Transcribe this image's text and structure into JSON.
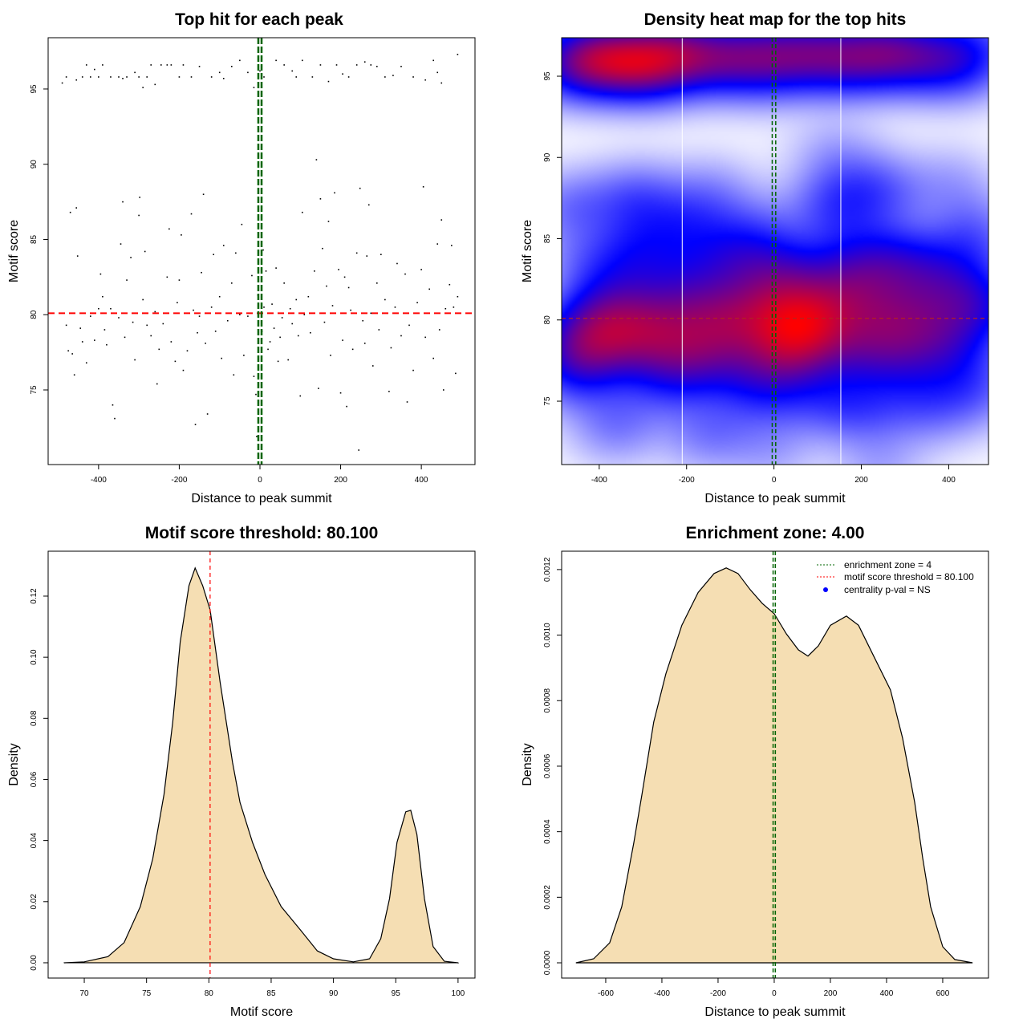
{
  "chart_data": [
    {
      "type": "scatter",
      "title": "Top hit for each peak",
      "xlabel": "Distance to peak summit",
      "ylabel": "Motif score",
      "xlim": [
        -525,
        533
      ],
      "ylim": [
        70.04,
        98.41
      ],
      "xticks": [
        "-400",
        "-200",
        "0",
        "200",
        "400"
      ],
      "xtick_values": [
        -400,
        -200,
        0,
        200,
        400
      ],
      "yticks": [
        "75",
        "80",
        "85",
        "90",
        "95"
      ],
      "ytick_values": [
        75,
        80,
        85,
        90,
        95
      ],
      "hline": {
        "y": 80.1,
        "color": "#ff0000",
        "style": "dashed"
      },
      "vlines": {
        "x": [
          -4,
          4
        ],
        "color": "#006400",
        "style": "dashed"
      },
      "points": [
        [
          -490,
          95.4
        ],
        [
          -480,
          95.8
        ],
        [
          -455,
          95.6
        ],
        [
          -440,
          95.8
        ],
        [
          -430,
          96.6
        ],
        [
          -420,
          95.8
        ],
        [
          -410,
          96.3
        ],
        [
          -400,
          95.8
        ],
        [
          -390,
          96.6
        ],
        [
          -370,
          95.8
        ],
        [
          -350,
          95.8
        ],
        [
          -340,
          95.7
        ],
        [
          -330,
          95.8
        ],
        [
          -310,
          96.1
        ],
        [
          -300,
          95.8
        ],
        [
          -290,
          95.1
        ],
        [
          -280,
          95.8
        ],
        [
          -270,
          96.6
        ],
        [
          -260,
          95.3
        ],
        [
          -245,
          96.6
        ],
        [
          -230,
          96.6
        ],
        [
          -220,
          96.6
        ],
        [
          -200,
          95.8
        ],
        [
          -190,
          96.6
        ],
        [
          -170,
          95.8
        ],
        [
          -150,
          96.5
        ],
        [
          -120,
          95.8
        ],
        [
          -100,
          96.1
        ],
        [
          -90,
          95.7
        ],
        [
          -70,
          96.5
        ],
        [
          -50,
          96.9
        ],
        [
          -30,
          96.1
        ],
        [
          -15,
          95.1
        ],
        [
          0,
          96.2
        ],
        [
          10,
          95.8
        ],
        [
          40,
          96.9
        ],
        [
          60,
          96.6
        ],
        [
          80,
          96.2
        ],
        [
          90,
          95.8
        ],
        [
          105,
          96.9
        ],
        [
          130,
          95.8
        ],
        [
          150,
          96.6
        ],
        [
          170,
          95.5
        ],
        [
          190,
          96.6
        ],
        [
          205,
          96.0
        ],
        [
          220,
          95.8
        ],
        [
          240,
          96.6
        ],
        [
          260,
          96.8
        ],
        [
          275,
          96.6
        ],
        [
          290,
          96.5
        ],
        [
          310,
          95.8
        ],
        [
          330,
          95.9
        ],
        [
          350,
          96.5
        ],
        [
          380,
          95.8
        ],
        [
          410,
          95.6
        ],
        [
          430,
          96.9
        ],
        [
          440,
          96.1
        ],
        [
          450,
          95.4
        ],
        [
          490,
          97.3
        ],
        [
          -480,
          79.3
        ],
        [
          -475,
          77.6
        ],
        [
          -470,
          86.8
        ],
        [
          -465,
          77.4
        ],
        [
          -460,
          76.0
        ],
        [
          -455,
          87.1
        ],
        [
          -452,
          83.9
        ],
        [
          -445,
          79.1
        ],
        [
          -440,
          78.2
        ],
        [
          -430,
          76.8
        ],
        [
          -420,
          79.9
        ],
        [
          -410,
          78.3
        ],
        [
          -400,
          80.4
        ],
        [
          -395,
          82.7
        ],
        [
          -390,
          81.2
        ],
        [
          -385,
          79.0
        ],
        [
          -380,
          78.0
        ],
        [
          -370,
          80.4
        ],
        [
          -365,
          74.0
        ],
        [
          -360,
          73.1
        ],
        [
          -350,
          79.8
        ],
        [
          -345,
          84.7
        ],
        [
          -340,
          87.5
        ],
        [
          -335,
          78.5
        ],
        [
          -330,
          82.3
        ],
        [
          -320,
          83.8
        ],
        [
          -315,
          79.5
        ],
        [
          -310,
          77.0
        ],
        [
          -300,
          86.6
        ],
        [
          -298,
          87.8
        ],
        [
          -290,
          81.0
        ],
        [
          -285,
          84.2
        ],
        [
          -280,
          79.3
        ],
        [
          -270,
          78.6
        ],
        [
          -260,
          80.2
        ],
        [
          -255,
          75.4
        ],
        [
          -250,
          77.7
        ],
        [
          -240,
          79.4
        ],
        [
          -230,
          82.5
        ],
        [
          -225,
          85.7
        ],
        [
          -220,
          78.2
        ],
        [
          -210,
          76.9
        ],
        [
          -205,
          80.8
        ],
        [
          -200,
          82.3
        ],
        [
          -195,
          85.3
        ],
        [
          -190,
          76.3
        ],
        [
          -180,
          77.6
        ],
        [
          -170,
          86.7
        ],
        [
          -165,
          80.3
        ],
        [
          -160,
          72.7
        ],
        [
          -155,
          78.8
        ],
        [
          -150,
          79.9
        ],
        [
          -145,
          82.8
        ],
        [
          -140,
          88.0
        ],
        [
          -135,
          78.1
        ],
        [
          -130,
          73.4
        ],
        [
          -120,
          80.5
        ],
        [
          -115,
          84.0
        ],
        [
          -110,
          78.9
        ],
        [
          -100,
          81.2
        ],
        [
          -95,
          77.1
        ],
        [
          -90,
          84.6
        ],
        [
          -80,
          79.6
        ],
        [
          -70,
          82.1
        ],
        [
          -65,
          76.0
        ],
        [
          -60,
          84.1
        ],
        [
          -50,
          80.0
        ],
        [
          -45,
          86.0
        ],
        [
          -40,
          77.3
        ],
        [
          -30,
          79.9
        ],
        [
          -20,
          82.6
        ],
        [
          -15,
          75.9
        ],
        [
          -10,
          74.7
        ],
        [
          -8,
          71.9
        ],
        [
          -5,
          81.3
        ],
        [
          5,
          78.9
        ],
        [
          8,
          84.3
        ],
        [
          10,
          80.5
        ],
        [
          15,
          82.9
        ],
        [
          20,
          77.7
        ],
        [
          25,
          78.2
        ],
        [
          30,
          80.7
        ],
        [
          35,
          79.1
        ],
        [
          40,
          83.1
        ],
        [
          45,
          76.9
        ],
        [
          50,
          78.5
        ],
        [
          55,
          79.8
        ],
        [
          60,
          82.1
        ],
        [
          70,
          77.0
        ],
        [
          75,
          80.4
        ],
        [
          80,
          79.4
        ],
        [
          90,
          81.0
        ],
        [
          95,
          78.6
        ],
        [
          100,
          74.6
        ],
        [
          105,
          86.8
        ],
        [
          110,
          80.0
        ],
        [
          120,
          81.2
        ],
        [
          125,
          78.8
        ],
        [
          135,
          82.9
        ],
        [
          140,
          90.3
        ],
        [
          145,
          75.1
        ],
        [
          150,
          87.7
        ],
        [
          155,
          84.4
        ],
        [
          160,
          79.5
        ],
        [
          165,
          81.9
        ],
        [
          170,
          86.2
        ],
        [
          175,
          77.3
        ],
        [
          180,
          80.6
        ],
        [
          185,
          88.1
        ],
        [
          195,
          83.0
        ],
        [
          200,
          74.8
        ],
        [
          205,
          78.3
        ],
        [
          210,
          82.5
        ],
        [
          215,
          73.9
        ],
        [
          220,
          81.8
        ],
        [
          225,
          80.3
        ],
        [
          230,
          77.7
        ],
        [
          240,
          84.1
        ],
        [
          245,
          71.0
        ],
        [
          248,
          88.4
        ],
        [
          255,
          79.6
        ],
        [
          260,
          78.1
        ],
        [
          265,
          83.9
        ],
        [
          270,
          87.3
        ],
        [
          275,
          80.1
        ],
        [
          280,
          76.6
        ],
        [
          290,
          82.1
        ],
        [
          295,
          79.0
        ],
        [
          300,
          84.0
        ],
        [
          310,
          81.0
        ],
        [
          320,
          74.9
        ],
        [
          325,
          77.8
        ],
        [
          335,
          80.5
        ],
        [
          340,
          83.4
        ],
        [
          350,
          78.6
        ],
        [
          360,
          82.7
        ],
        [
          365,
          74.2
        ],
        [
          370,
          79.3
        ],
        [
          380,
          76.3
        ],
        [
          390,
          80.8
        ],
        [
          400,
          83.0
        ],
        [
          405,
          88.5
        ],
        [
          410,
          78.5
        ],
        [
          420,
          81.7
        ],
        [
          430,
          77.1
        ],
        [
          440,
          84.7
        ],
        [
          445,
          79.0
        ],
        [
          450,
          86.3
        ],
        [
          455,
          75.0
        ],
        [
          460,
          80.4
        ],
        [
          470,
          82.0
        ],
        [
          475,
          84.6
        ],
        [
          480,
          80.5
        ],
        [
          485,
          76.1
        ],
        [
          490,
          81.2
        ]
      ]
    },
    {
      "type": "heatmap",
      "title": "Density heat map for the top hits",
      "xlabel": "Distance to peak summit",
      "ylabel": "Motif score",
      "xlim": [
        -486,
        491
      ],
      "ylim": [
        71.1,
        97.37
      ],
      "xticks": [
        "-400",
        "-200",
        "0",
        "200",
        "400"
      ],
      "xtick_values": [
        -400,
        -200,
        0,
        200,
        400
      ],
      "yticks": [
        "75",
        "80",
        "85",
        "90",
        "95"
      ],
      "ytick_values": [
        75,
        80,
        85,
        90,
        95
      ],
      "colors": [
        "#ffffff",
        "#0000ff",
        "#ff0000"
      ],
      "source": "density of the top-hit points",
      "white_vlines": [
        -210,
        153
      ],
      "hline": {
        "y": 80.1,
        "color": "#b22222",
        "style": "dashed"
      },
      "vlines": {
        "x": [
          -4,
          4
        ],
        "color": "#006400",
        "style": "dashed"
      }
    },
    {
      "type": "area",
      "title": "Motif score threshold: 80.100",
      "xlabel": "Motif score",
      "ylabel": "Density",
      "xlim": [
        67.1,
        101.36
      ],
      "ylim": [
        -0.005,
        0.1347
      ],
      "xticks": [
        "70",
        "75",
        "80",
        "85",
        "90",
        "95",
        "100"
      ],
      "xtick_values": [
        70,
        75,
        80,
        85,
        90,
        95,
        100
      ],
      "yticks": [
        "0.00",
        "0.02",
        "0.04",
        "0.06",
        "0.08",
        "0.10",
        "0.12"
      ],
      "ytick_values": [
        0,
        0.02,
        0.04,
        0.06,
        0.08,
        0.1,
        0.12
      ],
      "fill": "#f5deb3",
      "vline": {
        "x": 80.1,
        "color": "#ff0000",
        "style": "dashed"
      },
      "x": [
        68.4,
        70.0,
        71.9,
        73.2,
        74.5,
        75.5,
        76.4,
        77.1,
        77.7,
        78.4,
        78.9,
        79.5,
        80.1,
        80.9,
        81.9,
        82.5,
        83.5,
        84.5,
        85.8,
        87.4,
        88.7,
        90.0,
        91.6,
        92.9,
        93.8,
        94.5,
        95.1,
        95.8,
        96.2,
        96.7,
        97.3,
        98.0,
        98.9,
        100.0
      ],
      "y": [
        0,
        0.0003,
        0.002,
        0.0066,
        0.0184,
        0.0341,
        0.0551,
        0.0788,
        0.105,
        0.1234,
        0.1292,
        0.1234,
        0.1155,
        0.0919,
        0.0656,
        0.0525,
        0.0394,
        0.0289,
        0.0184,
        0.0105,
        0.0039,
        0.0013,
        0.0003,
        0.0013,
        0.0079,
        0.021,
        0.0394,
        0.0494,
        0.0499,
        0.042,
        0.021,
        0.0053,
        0.0005,
        0
      ]
    },
    {
      "type": "area",
      "title": "Enrichment zone: 4.00",
      "xlabel": "Distance to peak summit",
      "ylabel": "Density",
      "xlim": [
        -757,
        763
      ],
      "ylim": [
        -4.65e-05,
        0.001256
      ],
      "xticks": [
        "-600",
        "-400",
        "-200",
        "0",
        "200",
        "400",
        "600"
      ],
      "xtick_values": [
        -600,
        -400,
        -200,
        0,
        200,
        400,
        600
      ],
      "yticks": [
        "0.0000",
        "0.0002",
        "0.0004",
        "0.0006",
        "0.0008",
        "0.0010",
        "0.0012"
      ],
      "ytick_values": [
        0,
        0.0002,
        0.0004,
        0.0006,
        0.0008,
        0.001,
        0.0012
      ],
      "fill": "#f5deb3",
      "vlines": {
        "x": [
          -4,
          4
        ],
        "color": "#006400",
        "style": "dashed"
      },
      "x": [
        -706,
        -643,
        -586,
        -543,
        -500,
        -471,
        -429,
        -386,
        -329,
        -271,
        -214,
        -171,
        -129,
        -86,
        -43,
        0,
        43,
        86,
        120,
        157,
        200,
        257,
        300,
        357,
        414,
        457,
        500,
        529,
        557,
        600,
        643,
        706
      ],
      "y": [
        0,
        1.22e-05,
        6.12e-05,
        0.000171,
        0.000367,
        0.000514,
        0.000735,
        0.000882,
        0.00103,
        0.00113,
        0.001188,
        0.001205,
        0.001188,
        0.001139,
        0.001097,
        0.001065,
        0.001004,
        0.000955,
        0.000936,
        0.000967,
        0.00103,
        0.001058,
        0.00103,
        0.000931,
        0.000833,
        0.000686,
        0.00049,
        0.000318,
        0.000171,
        4.9e-05,
        1e-05,
        0
      ],
      "legend": {
        "position": "top-right",
        "entries": [
          {
            "label": "enrichment zone = 4",
            "color": "#006400",
            "symbol": "dotted-line"
          },
          {
            "label": "motif score threshold = 80.100",
            "color": "#ff0000",
            "symbol": "dotted-line"
          },
          {
            "label": "centrality p-val = NS",
            "color": "#0000ff",
            "symbol": "dot"
          }
        ]
      }
    }
  ]
}
